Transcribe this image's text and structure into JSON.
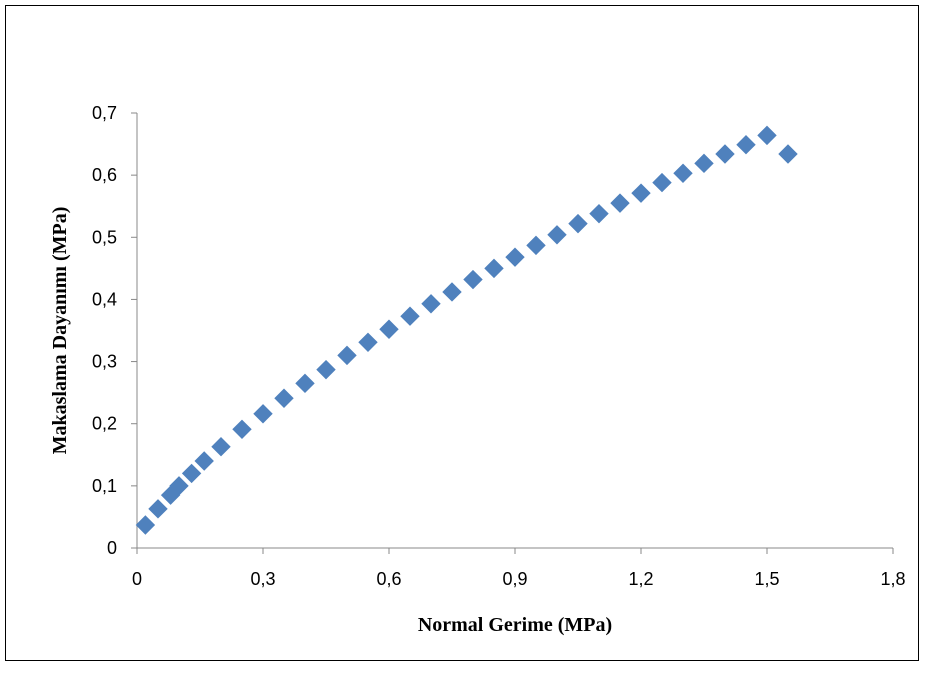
{
  "chart_data": {
    "type": "scatter",
    "title": "",
    "xlabel": "Normal Gerime (MPa)",
    "ylabel": "Makaslama Dayanımı (MPa)",
    "xlim": [
      0,
      1.8
    ],
    "ylim": [
      0,
      0.7
    ],
    "x_ticks": [
      "0",
      "0,3",
      "0,6",
      "0,9",
      "1,2",
      "1,5",
      "1,8"
    ],
    "y_ticks": [
      "0",
      "0,1",
      "0,2",
      "0,3",
      "0,4",
      "0,5",
      "0,6",
      "0,7"
    ],
    "grid": false,
    "legend": "none",
    "marker": "diamond",
    "series_color": "#4F81BD",
    "series": [
      {
        "x": [
          0.02,
          0.05,
          0.08,
          0.1,
          0.13,
          0.16,
          0.2,
          0.25,
          0.3,
          0.35,
          0.4,
          0.45,
          0.5,
          0.55,
          0.6,
          0.65,
          0.7,
          0.75,
          0.8,
          0.85,
          0.9,
          0.95,
          1.0,
          1.05,
          1.1,
          1.15,
          1.2,
          1.25,
          1.3,
          1.35,
          1.4,
          1.45,
          1.5,
          1.55
        ],
        "y": [
          0.037,
          0.063,
          0.085,
          0.1,
          0.12,
          0.14,
          0.163,
          0.191,
          0.216,
          0.241,
          0.265,
          0.287,
          0.31,
          0.331,
          0.352,
          0.373,
          0.393,
          0.412,
          0.432,
          0.45,
          0.468,
          0.487,
          0.504,
          0.522,
          0.538,
          0.555,
          0.571,
          0.588,
          0.603,
          0.619,
          0.634,
          0.649,
          0.664,
          0.634
        ]
      }
    ]
  }
}
